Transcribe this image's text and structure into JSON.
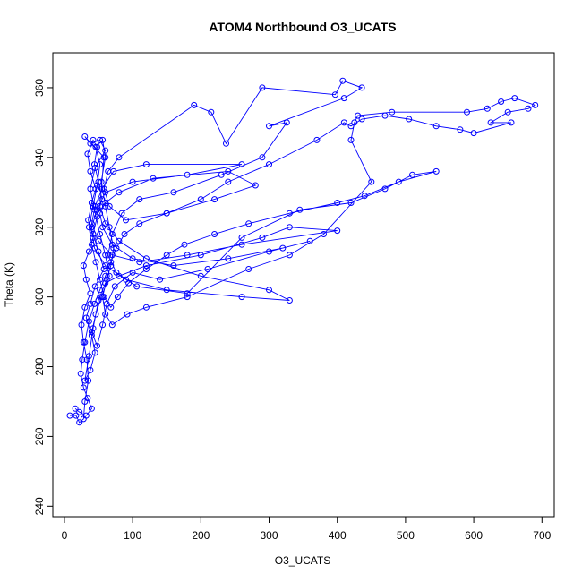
{
  "chart_data": {
    "type": "scatter",
    "title": "ATOM4 Northbound O3_UCATS",
    "xlabel": "O3_UCATS",
    "ylabel": "Theta (K)",
    "xlim": [
      -17,
      718
    ],
    "ylim": [
      237,
      370
    ],
    "x_ticks": [
      0,
      100,
      200,
      300,
      400,
      500,
      600,
      700
    ],
    "y_ticks": [
      240,
      260,
      280,
      300,
      320,
      340,
      360
    ],
    "grid": false,
    "color": "#0000ff",
    "series": [
      {
        "mode": "lines+markers",
        "points": [
          [
            8,
            266
          ],
          [
            17,
            266
          ],
          [
            22,
            264
          ],
          [
            28,
            265
          ],
          [
            30,
            270
          ],
          [
            35,
            276
          ],
          [
            33,
            282
          ],
          [
            28,
            287
          ],
          [
            25,
            292
          ],
          [
            30,
            297
          ],
          [
            38,
            301
          ],
          [
            32,
            305
          ],
          [
            28,
            309
          ],
          [
            36,
            313
          ],
          [
            42,
            317
          ],
          [
            35,
            322
          ],
          [
            40,
            327
          ],
          [
            46,
            331
          ],
          [
            38,
            336
          ],
          [
            34,
            341
          ],
          [
            42,
            345
          ],
          [
            48,
            343
          ],
          [
            44,
            338
          ],
          [
            50,
            333
          ],
          [
            55,
            328
          ],
          [
            48,
            323
          ],
          [
            42,
            318
          ],
          [
            50,
            313
          ],
          [
            58,
            308
          ],
          [
            45,
            303
          ],
          [
            38,
            298
          ],
          [
            32,
            294
          ],
          [
            40,
            289
          ],
          [
            45,
            284
          ],
          [
            38,
            279
          ],
          [
            30,
            276
          ],
          [
            36,
            283
          ],
          [
            42,
            291
          ],
          [
            50,
            299
          ],
          [
            60,
            304
          ],
          [
            80,
            306
          ],
          [
            120,
            309
          ],
          [
            200,
            312
          ],
          [
            290,
            317
          ],
          [
            330,
            320
          ],
          [
            400,
            319
          ],
          [
            260,
            315
          ],
          [
            180,
            312
          ],
          [
            110,
            310
          ],
          [
            70,
            312
          ],
          [
            50,
            316
          ],
          [
            40,
            321
          ],
          [
            45,
            326
          ],
          [
            55,
            331
          ],
          [
            72,
            336
          ],
          [
            120,
            338
          ],
          [
            260,
            338
          ],
          [
            180,
            335
          ],
          [
            100,
            333
          ],
          [
            60,
            330
          ],
          [
            48,
            325
          ],
          [
            40,
            320
          ],
          [
            44,
            314
          ],
          [
            60,
            309
          ],
          [
            90,
            305
          ],
          [
            150,
            302
          ],
          [
            260,
            300
          ],
          [
            330,
            299
          ],
          [
            300,
            302
          ],
          [
            200,
            306
          ],
          [
            120,
            311
          ],
          [
            80,
            316
          ],
          [
            60,
            321
          ],
          [
            52,
            326
          ],
          [
            58,
            340
          ],
          [
            30,
            346
          ],
          [
            38,
            344
          ],
          [
            52,
            345
          ],
          [
            60,
            342
          ],
          [
            45,
            337
          ],
          [
            38,
            331
          ],
          [
            44,
            325
          ],
          [
            52,
            318
          ],
          [
            60,
            312
          ],
          [
            66,
            306
          ],
          [
            54,
            300
          ],
          [
            46,
            295
          ],
          [
            40,
            290
          ],
          [
            48,
            286
          ],
          [
            56,
            292
          ],
          [
            62,
            298
          ],
          [
            74,
            303
          ],
          [
            100,
            307
          ],
          [
            140,
            305
          ],
          [
            210,
            308
          ],
          [
            300,
            313
          ],
          [
            360,
            316
          ],
          [
            320,
            314
          ],
          [
            240,
            311
          ],
          [
            160,
            309
          ],
          [
            100,
            311
          ],
          [
            70,
            315
          ],
          [
            56,
            320
          ],
          [
            52,
            324
          ],
          [
            60,
            327
          ],
          [
            80,
            330
          ],
          [
            130,
            334
          ],
          [
            240,
            336
          ],
          [
            280,
            332
          ],
          [
            220,
            328
          ],
          [
            150,
            324
          ],
          [
            90,
            322
          ],
          [
            66,
            326
          ],
          [
            58,
            331
          ],
          [
            64,
            336
          ],
          [
            80,
            340
          ],
          [
            190,
            355
          ],
          [
            215,
            353
          ],
          [
            237,
            344
          ],
          [
            290,
            360
          ],
          [
            397,
            358
          ],
          [
            408,
            362
          ],
          [
            436,
            360
          ],
          [
            410,
            357
          ],
          [
            300,
            349
          ],
          [
            326,
            350
          ],
          [
            290,
            340
          ],
          [
            230,
            335
          ],
          [
            160,
            330
          ],
          [
            110,
            328
          ],
          [
            84,
            324
          ],
          [
            70,
            318
          ],
          [
            64,
            312
          ],
          [
            76,
            307
          ],
          [
            106,
            303
          ],
          [
            180,
            301
          ],
          [
            260,
            317
          ],
          [
            345,
            325
          ],
          [
            420,
            327
          ],
          [
            470,
            331
          ],
          [
            510,
            335
          ],
          [
            545,
            336
          ],
          [
            490,
            333
          ],
          [
            440,
            329
          ],
          [
            400,
            327
          ],
          [
            330,
            324
          ],
          [
            270,
            321
          ],
          [
            220,
            318
          ],
          [
            176,
            315
          ],
          [
            150,
            312
          ],
          [
            120,
            308
          ],
          [
            94,
            304
          ],
          [
            78,
            300
          ],
          [
            68,
            297
          ],
          [
            58,
            300
          ],
          [
            52,
            305
          ],
          [
            46,
            310
          ],
          [
            40,
            315
          ],
          [
            36,
            320
          ],
          [
            42,
            326
          ],
          [
            48,
            332
          ],
          [
            52,
            338
          ],
          [
            46,
            343
          ],
          [
            56,
            345
          ],
          [
            60,
            340
          ],
          [
            54,
            333
          ],
          [
            60,
            326
          ],
          [
            66,
            320
          ],
          [
            72,
            314
          ],
          [
            68,
            309
          ],
          [
            62,
            305
          ],
          [
            56,
            300
          ],
          [
            60,
            295
          ],
          [
            70,
            292
          ],
          [
            92,
            295
          ],
          [
            120,
            297
          ],
          [
            180,
            300
          ],
          [
            270,
            308
          ],
          [
            330,
            312
          ],
          [
            380,
            318
          ],
          [
            450,
            333
          ],
          [
            420,
            345
          ],
          [
            425,
            350
          ],
          [
            430,
            352
          ],
          [
            480,
            353
          ],
          [
            590,
            353
          ],
          [
            620,
            354
          ],
          [
            640,
            356
          ],
          [
            660,
            357
          ],
          [
            690,
            355
          ],
          [
            680,
            354
          ],
          [
            650,
            353
          ],
          [
            625,
            350
          ],
          [
            655,
            350
          ],
          [
            600,
            347
          ],
          [
            580,
            348
          ],
          [
            545,
            349
          ],
          [
            505,
            351
          ],
          [
            470,
            352
          ],
          [
            436,
            351
          ],
          [
            420,
            349
          ],
          [
            410,
            350
          ],
          [
            370,
            345
          ],
          [
            300,
            338
          ],
          [
            240,
            333
          ],
          [
            200,
            328
          ],
          [
            150,
            324
          ],
          [
            110,
            321
          ],
          [
            88,
            318
          ],
          [
            76,
            314
          ],
          [
            68,
            310
          ],
          [
            60,
            306
          ],
          [
            52,
            302
          ],
          [
            44,
            298
          ],
          [
            36,
            293
          ],
          [
            30,
            287
          ],
          [
            26,
            282
          ],
          [
            24,
            278
          ],
          [
            28,
            274
          ],
          [
            34,
            271
          ],
          [
            40,
            268
          ],
          [
            32,
            266
          ],
          [
            22,
            267
          ],
          [
            16,
            268
          ]
        ]
      }
    ]
  }
}
